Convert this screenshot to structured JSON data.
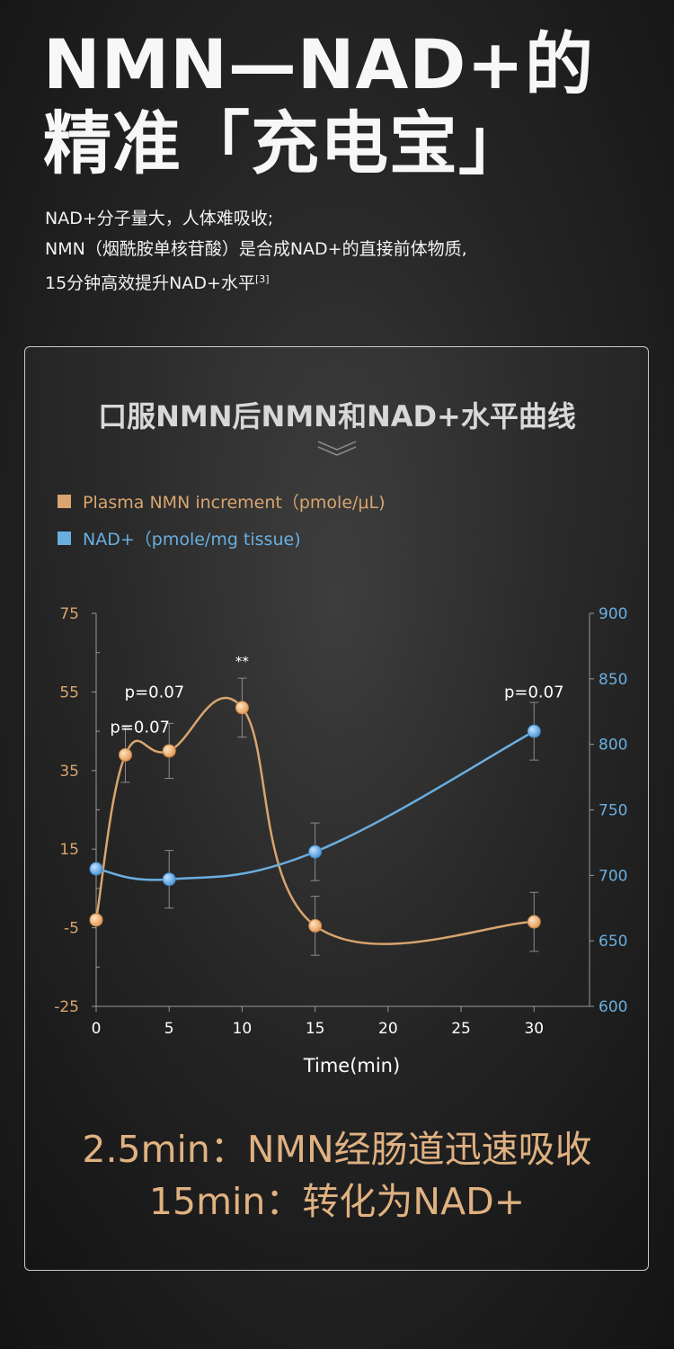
{
  "headline": {
    "line1": "NMN—NAD+的",
    "line2": "精准「充电宝」"
  },
  "intro": {
    "line1": "NAD+分子量大，人体难吸收;",
    "line2": "NMN（烟酰胺单核苷酸）是合成NAD+的直接前体物质,",
    "line3": "15分钟高效提升NAD+水平",
    "citation": "[3]"
  },
  "card": {
    "title": "口服NMN后NMN和NAD+水平曲线"
  },
  "legend": {
    "series1": "Plasma NMN increment（pmole/μL)",
    "series2": "NAD+（pmole/mg tissue)"
  },
  "chart_data": {
    "type": "line",
    "x_label": "Time(min)",
    "x_ticks": [
      0,
      5,
      10,
      15,
      20,
      25,
      30
    ],
    "x_range": [
      0,
      33
    ],
    "y_left_ticks": [
      -25,
      -5,
      15,
      35,
      55,
      75
    ],
    "y_left_range": [
      -25,
      75
    ],
    "y_right_ticks": [
      600,
      650,
      700,
      750,
      800,
      850,
      900
    ],
    "y_right_range": [
      600,
      900
    ],
    "grid": false,
    "legend_position": "top-left",
    "series": [
      {
        "name": "Plasma NMN increment（pmole/μL)",
        "axis": "left",
        "color": "#d9a56e",
        "x": [
          0,
          2,
          5,
          10,
          15,
          30
        ],
        "y": [
          -3,
          39,
          40,
          51,
          -4.5,
          -3.5
        ],
        "error": [
          0,
          7,
          7,
          7.5,
          7.5,
          7.5
        ]
      },
      {
        "name": "NAD+（pmole/mg tissue)",
        "axis": "right",
        "color": "#6aaee0",
        "x": [
          0,
          5,
          15,
          30
        ],
        "y": [
          705,
          697,
          718,
          810
        ],
        "error": [
          0,
          22,
          22,
          22
        ]
      }
    ],
    "annotations": [
      {
        "text": "p=0.07",
        "x": 4,
        "y": 55
      },
      {
        "text": "p=0.07",
        "x": 3,
        "y": 46
      },
      {
        "text": "**",
        "x": 10,
        "y": 63
      },
      {
        "text": "p=0.07",
        "x": 30,
        "y": 55
      }
    ]
  },
  "bottom": {
    "line1": "2.5min：NMN经肠道迅速吸收",
    "line2": "15min：转化为NAD+"
  }
}
